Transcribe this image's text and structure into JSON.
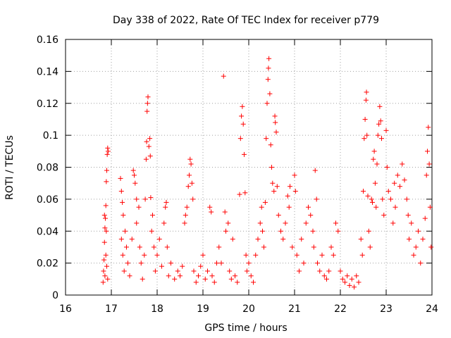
{
  "chart_data": {
    "type": "scatter",
    "title": "Day 338 of 2022, Rate Of TEC Index for receiver p779",
    "xlabel": "GPS time / hours",
    "ylabel": "ROTI / TECUs",
    "xlim": [
      16,
      24
    ],
    "ylim": [
      0,
      0.16
    ],
    "x_ticks": [
      16,
      17,
      18,
      19,
      20,
      21,
      22,
      23,
      24
    ],
    "y_ticks": [
      0,
      0.02,
      0.04,
      0.06,
      0.08,
      0.1,
      0.12,
      0.14,
      0.16
    ],
    "x_tick_labels": [
      "16",
      "17",
      "18",
      "19",
      "20",
      "21",
      "22",
      "23",
      "24"
    ],
    "y_tick_labels": [
      "0",
      "0.02",
      "0.04",
      "0.06",
      "0.08",
      "0.1",
      "0.12",
      "0.14",
      "0.16"
    ],
    "grid": true,
    "marker": "+",
    "color": "#ff0000",
    "series": [
      {
        "name": "ROTI",
        "points": [
          [
            16.82,
            0.008
          ],
          [
            16.83,
            0.015
          ],
          [
            16.84,
            0.022
          ],
          [
            16.85,
            0.033
          ],
          [
            16.86,
            0.042
          ],
          [
            16.87,
            0.048
          ],
          [
            16.88,
            0.056
          ],
          [
            16.89,
            0.071
          ],
          [
            16.9,
            0.078
          ],
          [
            16.91,
            0.088
          ],
          [
            16.92,
            0.092
          ],
          [
            16.93,
            0.09
          ],
          [
            16.86,
            0.012
          ],
          [
            16.88,
            0.025
          ],
          [
            16.9,
            0.018
          ],
          [
            16.92,
            0.01
          ],
          [
            16.85,
            0.05
          ],
          [
            16.89,
            0.04
          ],
          [
            17.2,
            0.073
          ],
          [
            17.22,
            0.065
          ],
          [
            17.24,
            0.058
          ],
          [
            17.26,
            0.05
          ],
          [
            17.22,
            0.035
          ],
          [
            17.25,
            0.025
          ],
          [
            17.28,
            0.015
          ],
          [
            17.3,
            0.04
          ],
          [
            17.33,
            0.03
          ],
          [
            17.36,
            0.02
          ],
          [
            17.4,
            0.012
          ],
          [
            17.45,
            0.035
          ],
          [
            17.48,
            0.078
          ],
          [
            17.5,
            0.075
          ],
          [
            17.52,
            0.07
          ],
          [
            17.55,
            0.06
          ],
          [
            17.55,
            0.045
          ],
          [
            17.6,
            0.055
          ],
          [
            17.62,
            0.03
          ],
          [
            17.65,
            0.02
          ],
          [
            17.68,
            0.01
          ],
          [
            17.72,
            0.025
          ],
          [
            17.74,
            0.06
          ],
          [
            17.76,
            0.085
          ],
          [
            17.77,
            0.096
          ],
          [
            17.78,
            0.115
          ],
          [
            17.79,
            0.12
          ],
          [
            17.8,
            0.124
          ],
          [
            17.82,
            0.093
          ],
          [
            17.84,
            0.098
          ],
          [
            17.85,
            0.087
          ],
          [
            17.86,
            0.061
          ],
          [
            17.88,
            0.04
          ],
          [
            17.9,
            0.05
          ],
          [
            17.93,
            0.03
          ],
          [
            17.96,
            0.015
          ],
          [
            18.0,
            0.025
          ],
          [
            18.05,
            0.035
          ],
          [
            18.1,
            0.018
          ],
          [
            18.15,
            0.045
          ],
          [
            18.18,
            0.055
          ],
          [
            18.2,
            0.058
          ],
          [
            18.22,
            0.03
          ],
          [
            18.25,
            0.012
          ],
          [
            18.3,
            0.02
          ],
          [
            18.38,
            0.01
          ],
          [
            18.45,
            0.015
          ],
          [
            18.5,
            0.012
          ],
          [
            18.55,
            0.018
          ],
          [
            18.6,
            0.045
          ],
          [
            18.62,
            0.05
          ],
          [
            18.65,
            0.055
          ],
          [
            18.68,
            0.068
          ],
          [
            18.7,
            0.075
          ],
          [
            18.72,
            0.085
          ],
          [
            18.74,
            0.082
          ],
          [
            18.76,
            0.07
          ],
          [
            18.78,
            0.06
          ],
          [
            18.8,
            0.015
          ],
          [
            18.85,
            0.008
          ],
          [
            18.9,
            0.012
          ],
          [
            18.95,
            0.018
          ],
          [
            19.0,
            0.025
          ],
          [
            19.05,
            0.01
          ],
          [
            19.1,
            0.015
          ],
          [
            19.15,
            0.055
          ],
          [
            19.18,
            0.052
          ],
          [
            19.2,
            0.012
          ],
          [
            19.25,
            0.008
          ],
          [
            19.3,
            0.02
          ],
          [
            19.35,
            0.03
          ],
          [
            19.4,
            0.02
          ],
          [
            19.45,
            0.137
          ],
          [
            19.48,
            0.052
          ],
          [
            19.5,
            0.04
          ],
          [
            19.55,
            0.045
          ],
          [
            19.58,
            0.015
          ],
          [
            19.62,
            0.01
          ],
          [
            19.65,
            0.035
          ],
          [
            19.7,
            0.012
          ],
          [
            19.75,
            0.008
          ],
          [
            19.8,
            0.063
          ],
          [
            19.82,
            0.098
          ],
          [
            19.84,
            0.112
          ],
          [
            19.86,
            0.118
          ],
          [
            19.88,
            0.107
          ],
          [
            19.9,
            0.088
          ],
          [
            19.92,
            0.064
          ],
          [
            19.94,
            0.025
          ],
          [
            19.96,
            0.015
          ],
          [
            20.0,
            0.02
          ],
          [
            20.05,
            0.012
          ],
          [
            20.1,
            0.008
          ],
          [
            20.15,
            0.025
          ],
          [
            20.2,
            0.035
          ],
          [
            20.25,
            0.045
          ],
          [
            20.28,
            0.055
          ],
          [
            20.3,
            0.04
          ],
          [
            20.33,
            0.03
          ],
          [
            20.36,
            0.058
          ],
          [
            20.38,
            0.098
          ],
          [
            20.4,
            0.12
          ],
          [
            20.42,
            0.135
          ],
          [
            20.43,
            0.142
          ],
          [
            20.44,
            0.148
          ],
          [
            20.46,
            0.126
          ],
          [
            20.48,
            0.094
          ],
          [
            20.5,
            0.08
          ],
          [
            20.52,
            0.07
          ],
          [
            20.55,
            0.065
          ],
          [
            20.57,
            0.112
          ],
          [
            20.58,
            0.108
          ],
          [
            20.6,
            0.102
          ],
          [
            20.62,
            0.068
          ],
          [
            20.65,
            0.05
          ],
          [
            20.7,
            0.04
          ],
          [
            20.75,
            0.035
          ],
          [
            20.8,
            0.045
          ],
          [
            20.85,
            0.062
          ],
          [
            20.88,
            0.055
          ],
          [
            20.9,
            0.068
          ],
          [
            20.95,
            0.03
          ],
          [
            21.0,
            0.075
          ],
          [
            21.02,
            0.065
          ],
          [
            21.05,
            0.025
          ],
          [
            21.1,
            0.015
          ],
          [
            21.15,
            0.035
          ],
          [
            21.2,
            0.02
          ],
          [
            21.25,
            0.045
          ],
          [
            21.3,
            0.055
          ],
          [
            21.35,
            0.05
          ],
          [
            21.4,
            0.04
          ],
          [
            21.42,
            0.03
          ],
          [
            21.45,
            0.078
          ],
          [
            21.48,
            0.06
          ],
          [
            21.5,
            0.02
          ],
          [
            21.55,
            0.015
          ],
          [
            21.6,
            0.025
          ],
          [
            21.65,
            0.012
          ],
          [
            21.7,
            0.01
          ],
          [
            21.75,
            0.015
          ],
          [
            21.8,
            0.03
          ],
          [
            21.85,
            0.025
          ],
          [
            21.9,
            0.045
          ],
          [
            21.95,
            0.04
          ],
          [
            22.0,
            0.015
          ],
          [
            22.05,
            0.01
          ],
          [
            22.1,
            0.008
          ],
          [
            22.15,
            0.012
          ],
          [
            22.2,
            0.006
          ],
          [
            22.25,
            0.01
          ],
          [
            22.3,
            0.005
          ],
          [
            22.35,
            0.012
          ],
          [
            22.4,
            0.008
          ],
          [
            22.45,
            0.035
          ],
          [
            22.48,
            0.025
          ],
          [
            22.5,
            0.065
          ],
          [
            22.52,
            0.098
          ],
          [
            22.54,
            0.11
          ],
          [
            22.56,
            0.122
          ],
          [
            22.57,
            0.127
          ],
          [
            22.58,
            0.1
          ],
          [
            22.6,
            0.062
          ],
          [
            22.62,
            0.04
          ],
          [
            22.65,
            0.03
          ],
          [
            22.68,
            0.06
          ],
          [
            22.7,
            0.058
          ],
          [
            22.72,
            0.085
          ],
          [
            22.74,
            0.09
          ],
          [
            22.76,
            0.07
          ],
          [
            22.78,
            0.055
          ],
          [
            22.8,
            0.082
          ],
          [
            22.82,
            0.1
          ],
          [
            22.84,
            0.107
          ],
          [
            22.86,
            0.118
          ],
          [
            22.88,
            0.109
          ],
          [
            22.9,
            0.098
          ],
          [
            22.92,
            0.06
          ],
          [
            22.95,
            0.05
          ],
          [
            23.0,
            0.103
          ],
          [
            23.02,
            0.08
          ],
          [
            23.05,
            0.065
          ],
          [
            23.1,
            0.06
          ],
          [
            23.15,
            0.045
          ],
          [
            23.18,
            0.07
          ],
          [
            23.2,
            0.055
          ],
          [
            23.25,
            0.075
          ],
          [
            23.3,
            0.068
          ],
          [
            23.35,
            0.082
          ],
          [
            23.4,
            0.072
          ],
          [
            23.45,
            0.06
          ],
          [
            23.48,
            0.05
          ],
          [
            23.5,
            0.035
          ],
          [
            23.55,
            0.045
          ],
          [
            23.6,
            0.025
          ],
          [
            23.65,
            0.03
          ],
          [
            23.7,
            0.04
          ],
          [
            23.75,
            0.02
          ],
          [
            23.8,
            0.035
          ],
          [
            23.85,
            0.048
          ],
          [
            23.88,
            0.075
          ],
          [
            23.9,
            0.09
          ],
          [
            23.92,
            0.105
          ],
          [
            23.94,
            0.082
          ],
          [
            23.96,
            0.055
          ],
          [
            23.98,
            0.03
          ]
        ]
      }
    ]
  }
}
